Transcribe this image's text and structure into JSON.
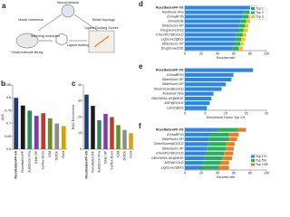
{
  "panels": [
    "a"
  ],
  "diagram": {
    "nodes": [
      "Neural network",
      "Model coherence",
      "Model topology",
      "Small molecule library",
      "Selecting molecules",
      "Ligand docking",
      "Ligand Docking Scores"
    ]
  },
  "chart_data": [
    {
      "panel": "b",
      "type": "bar",
      "y_label": "AUC",
      "categories": [
        "RosettaGenFF-VS",
        "RosettaGenFF",
        "AutoDock Vina",
        "Glide SP",
        "Surflex-Dock",
        "ICM",
        "DOCK",
        "Gold"
      ],
      "values": [
        0.8,
        0.77,
        0.75,
        0.73,
        0.74,
        0.72,
        0.7,
        0.69
      ],
      "colors": [
        "#1f3b73",
        "#1a1a1a",
        "#2e8b57",
        "#7b3f9e",
        "#c0392b",
        "#6b8e23",
        "#8c8c8c",
        "#d4a017"
      ],
      "ylim": [
        0.6,
        0.85
      ],
      "yticks": [
        0.6,
        0.65,
        0.7,
        0.75,
        0.8,
        0.85
      ]
    },
    {
      "panel": "c",
      "type": "bar",
      "y_label": "ROC Enrichment",
      "categories": [
        "RosettaGenFF-VS",
        "RosettaGenFF",
        "AutoDock Vina",
        "Glide SP",
        "Surflex-Dock",
        "ICM",
        "DOCK",
        "Gold"
      ],
      "values": [
        34,
        27,
        18,
        22,
        20,
        15,
        12,
        10
      ],
      "colors": [
        "#1f3b73",
        "#1a1a1a",
        "#2e8b57",
        "#7b3f9e",
        "#c0392b",
        "#6b8e23",
        "#8c8c8c",
        "#d4a017"
      ],
      "ylim": [
        0,
        40
      ],
      "yticks": [
        0,
        10,
        20,
        30,
        40
      ]
    },
    {
      "panel": "d",
      "type": "hbar",
      "x_label": "Success rate",
      "categories": [
        "RosettaGenFF-VS",
        "AutoDock Vina",
        "ΔVinaRF20",
        "ΔVinaXGB",
        "GlideScore-SP",
        "DrugScore2018",
        "ChemPLP@GOLD",
        "LigScore2@DS",
        "GlideScore-XP",
        "DrugScoreCSD"
      ],
      "series": [
        {
          "name": "Top 1",
          "color": "#2e86de",
          "values": [
            80,
            72,
            70,
            68,
            66,
            65,
            63,
            62,
            60,
            58
          ]
        },
        {
          "name": "Top 2",
          "color": "#27ae60",
          "values": [
            6,
            7,
            8,
            7,
            8,
            7,
            8,
            7,
            8,
            8
          ]
        },
        {
          "name": "Top 3",
          "color": "#f1c40f",
          "values": [
            4,
            5,
            4,
            5,
            4,
            5,
            4,
            5,
            4,
            5
          ]
        }
      ],
      "xlim": [
        0,
        100
      ],
      "xticks": [
        0,
        20,
        40,
        60,
        80,
        100
      ]
    },
    {
      "panel": "e",
      "type": "hbar",
      "x_label": "Enrichment Factor Top 1%",
      "categories": [
        "RosettaGenFF-VS",
        "ΔVinaRF20",
        "GlideScore-SP",
        "GlideScore-XP",
        "ChemScore@GOLD",
        "Autodock Vina",
        "GBVI/WSA-dG@MOE",
        "ASP@GOLD",
        "LUDI2@DS"
      ],
      "values": [
        16.7,
        11.9,
        11.4,
        10,
        9,
        7,
        6.5,
        6.1,
        5.4
      ],
      "color": "#2e86de",
      "xlim": [
        0,
        20
      ],
      "xticks": [
        0,
        5,
        10,
        15,
        20
      ]
    },
    {
      "panel": "f",
      "type": "hbar",
      "x_label": "Success rate",
      "categories": [
        "RosettaGenFF-VS",
        "ΔVinaRF20",
        "GlideScore-SP",
        "ChemScore@GOLD",
        "GlideScore-XP",
        "ChemPLP@GOLD",
        "GBVI/WSA-dG@MOE",
        "ASP@GOLD",
        "LigScore2@DS"
      ],
      "series": [
        {
          "name": "Top 1%",
          "color": "#2e86de",
          "values": [
            40,
            30,
            29,
            28,
            27,
            26,
            24,
            23,
            20
          ]
        },
        {
          "name": "Top 5%",
          "color": "#27ae60",
          "values": [
            25,
            24,
            25,
            22,
            23,
            22,
            22,
            21,
            22
          ]
        },
        {
          "name": "Top 10%",
          "color": "#e67e22",
          "values": [
            10,
            12,
            10,
            11,
            10,
            11,
            12,
            10,
            12
          ]
        }
      ],
      "xlim": [
        0,
        100
      ],
      "xticks": [
        0,
        20,
        40,
        60,
        80,
        100
      ],
      "legend": "lower right"
    }
  ]
}
